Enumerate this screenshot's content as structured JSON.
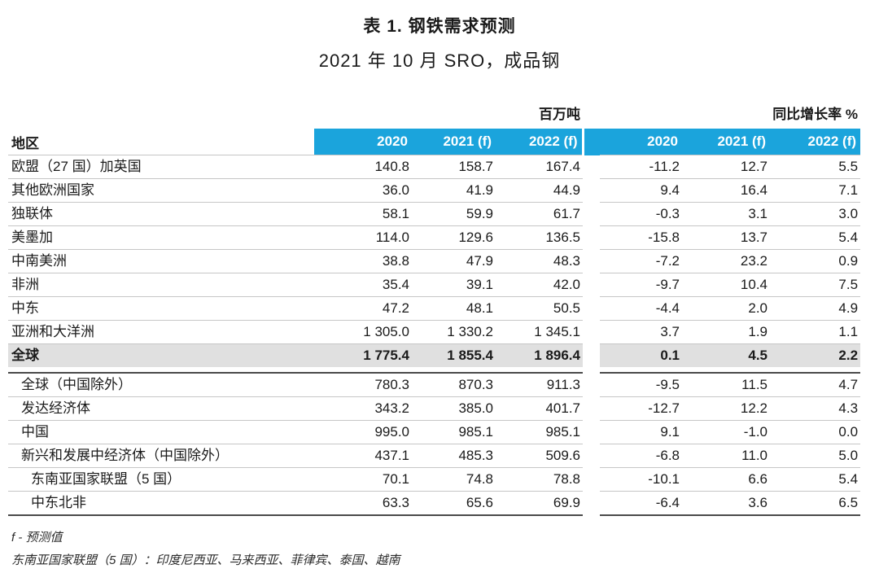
{
  "page": {
    "title": "表 1. 钢铁需求预测",
    "subtitle": "2021 年 10 月 SRO，成品钢"
  },
  "table": {
    "region_header": "地区",
    "unit_tonnage": "百万吨",
    "unit_growth": "同比增长率 %",
    "years": [
      "2020",
      "2021 (f)",
      "2022 (f)"
    ],
    "colors": {
      "header_bg": "#1BA4DC",
      "header_text": "#FFFFFF",
      "total_row_bg": "#E0E0E0",
      "divider_dark": "#4A4A4A",
      "divider_light": "#C6C6C6"
    },
    "sections": [
      {
        "rows": [
          {
            "label": "欧盟（27 国）加英国",
            "indent": 0,
            "bold": false,
            "highlight": false,
            "tonnage": [
              "140.8",
              "158.7",
              "167.4"
            ],
            "growth": [
              "-11.2",
              "12.7",
              "5.5"
            ]
          },
          {
            "label": "其他欧洲国家",
            "indent": 0,
            "bold": false,
            "highlight": false,
            "tonnage": [
              "36.0",
              "41.9",
              "44.9"
            ],
            "growth": [
              "9.4",
              "16.4",
              "7.1"
            ]
          },
          {
            "label": "独联体",
            "indent": 0,
            "bold": false,
            "highlight": false,
            "tonnage": [
              "58.1",
              "59.9",
              "61.7"
            ],
            "growth": [
              "-0.3",
              "3.1",
              "3.0"
            ]
          },
          {
            "label": "美墨加",
            "indent": 0,
            "bold": false,
            "highlight": false,
            "tonnage": [
              "114.0",
              "129.6",
              "136.5"
            ],
            "growth": [
              "-15.8",
              "13.7",
              "5.4"
            ]
          },
          {
            "label": "中南美洲",
            "indent": 0,
            "bold": false,
            "highlight": false,
            "tonnage": [
              "38.8",
              "47.9",
              "48.3"
            ],
            "growth": [
              "-7.2",
              "23.2",
              "0.9"
            ]
          },
          {
            "label": "非洲",
            "indent": 0,
            "bold": false,
            "highlight": false,
            "tonnage": [
              "35.4",
              "39.1",
              "42.0"
            ],
            "growth": [
              "-9.7",
              "10.4",
              "7.5"
            ]
          },
          {
            "label": "中东",
            "indent": 0,
            "bold": false,
            "highlight": false,
            "tonnage": [
              "47.2",
              "48.1",
              "50.5"
            ],
            "growth": [
              "-4.4",
              "2.0",
              "4.9"
            ]
          },
          {
            "label": "亚洲和大洋洲",
            "indent": 0,
            "bold": false,
            "highlight": false,
            "tonnage": [
              "1 305.0",
              "1 330.2",
              "1 345.1"
            ],
            "growth": [
              "3.7",
              "1.9",
              "1.1"
            ]
          },
          {
            "label": "全球",
            "indent": 0,
            "bold": true,
            "highlight": true,
            "tonnage": [
              "1 775.4",
              "1 855.4",
              "1 896.4"
            ],
            "growth": [
              "0.1",
              "4.5",
              "2.2"
            ]
          }
        ]
      },
      {
        "rows": [
          {
            "label": "全球（中国除外）",
            "indent": 1,
            "bold": false,
            "highlight": false,
            "tonnage": [
              "780.3",
              "870.3",
              "911.3"
            ],
            "growth": [
              "-9.5",
              "11.5",
              "4.7"
            ]
          },
          {
            "label": "发达经济体",
            "indent": 1,
            "bold": false,
            "highlight": false,
            "tonnage": [
              "343.2",
              "385.0",
              "401.7"
            ],
            "growth": [
              "-12.7",
              "12.2",
              "4.3"
            ]
          },
          {
            "label": "中国",
            "indent": 1,
            "bold": false,
            "highlight": false,
            "tonnage": [
              "995.0",
              "985.1",
              "985.1"
            ],
            "growth": [
              "9.1",
              "-1.0",
              "0.0"
            ]
          },
          {
            "label": "新兴和发展中经济体（中国除外）",
            "indent": 1,
            "bold": false,
            "highlight": false,
            "tonnage": [
              "437.1",
              "485.3",
              "509.6"
            ],
            "growth": [
              "-6.8",
              "11.0",
              "5.0"
            ]
          },
          {
            "label": "东南亚国家联盟（5 国）",
            "indent": 2,
            "bold": false,
            "highlight": false,
            "tonnage": [
              "70.1",
              "74.8",
              "78.8"
            ],
            "growth": [
              "-10.1",
              "6.6",
              "5.4"
            ]
          },
          {
            "label": "中东北非",
            "indent": 2,
            "bold": false,
            "highlight": false,
            "tonnage": [
              "63.3",
              "65.6",
              "69.9"
            ],
            "growth": [
              "-6.4",
              "3.6",
              "6.5"
            ]
          }
        ]
      }
    ]
  },
  "footnotes": [
    "f - 预测值",
    "东南亚国家联盟（5 国）：印度尼西亚、马来西亚、菲律宾、泰国、越南"
  ]
}
